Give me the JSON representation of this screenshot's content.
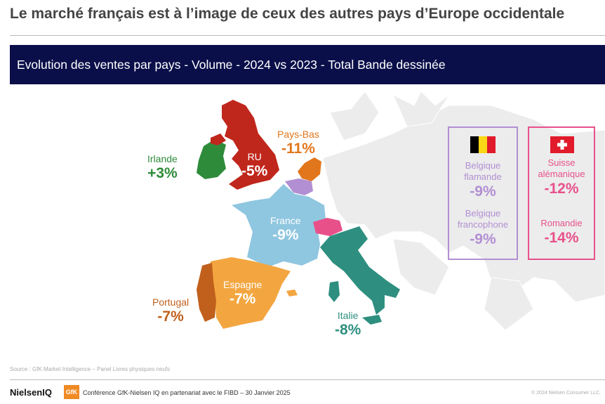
{
  "title": "Le marché français est à l’image de ceux des autres pays d’Europe occidentale",
  "banner": "Evolution des ventes par pays - Volume - 2024 vs 2023 - Total Bande dessinée",
  "countries": {
    "irlande": {
      "name": "Irlande",
      "value": "+3%",
      "color": "#2e8b3a"
    },
    "ru": {
      "name": "RU",
      "value": "-5%",
      "color": "#c0271c"
    },
    "pays_bas": {
      "name": "Pays-Bas",
      "value": "-11%",
      "color": "#e2761c"
    },
    "france": {
      "name": "France",
      "value": "-9%",
      "color": "#8fc6e0"
    },
    "espagne": {
      "name": "Espagne",
      "value": "-7%",
      "color": "#f3a640"
    },
    "portugal": {
      "name": "Portugal",
      "value": "-7%",
      "color": "#c0601c"
    },
    "italie": {
      "name": "Italie",
      "value": "-8%",
      "color": "#2e8f80"
    },
    "belgique_color": "#b28fd3",
    "suisse_color": "#e8508a"
  },
  "belgium_box": {
    "border_color": "#b28fd3",
    "items": [
      {
        "name_line1": "Belgique",
        "name_line2": "flamande",
        "value": "-9%"
      },
      {
        "name_line1": "Belgique",
        "name_line2": "francophone",
        "value": "-9%"
      }
    ]
  },
  "swiss_box": {
    "border_color": "#e8508a",
    "items": [
      {
        "name_line1": "Suisse",
        "name_line2": "alémanique",
        "value": "-12%"
      },
      {
        "name_line1": "Romandie",
        "name_line2": "",
        "value": "-14%"
      }
    ]
  },
  "source": "Source : GfK Market Intelligence – Panel Livres physiques neufs",
  "footer": {
    "logo_nielsen": "NielsenIQ",
    "logo_gfk": "GfK",
    "text": "Conférence GfK-Nielsen IQ en partenariat avec le FIBD – 30 Janvier 2025",
    "copyright": "© 2024 Nielsen Consumer LLC."
  }
}
